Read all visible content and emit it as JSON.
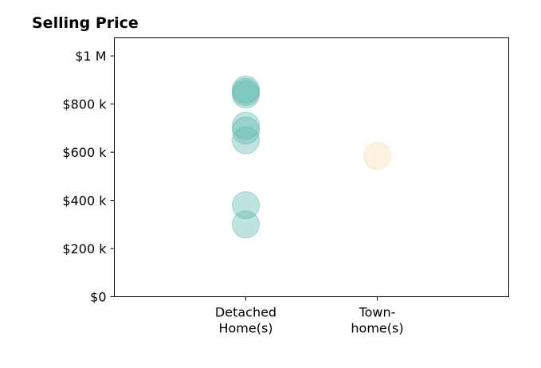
{
  "chart_data": {
    "type": "scatter",
    "title": "Selling Price",
    "xlabel": "",
    "ylabel": "",
    "categories": [
      [
        "Detached",
        "Home(s)"
      ],
      [
        "Town-",
        "home(s)"
      ]
    ],
    "y_ticks": [
      0,
      200000,
      400000,
      600000,
      800000,
      1000000
    ],
    "y_tick_labels": [
      "$0",
      "$200 k",
      "$400 k",
      "$600 k",
      "$800 k",
      "$1 M"
    ],
    "ylim": [
      0,
      1075000
    ],
    "xlim": [
      -1,
      2
    ],
    "grid": false,
    "legend": "none",
    "series": [
      {
        "category_index": 0,
        "color": "#5fb8ad",
        "values": [
          300000,
          380000,
          650000,
          690000,
          710000,
          840000,
          850000,
          860000
        ]
      },
      {
        "category_index": 1,
        "color": "#f5deb0",
        "values": [
          585000
        ]
      }
    ]
  }
}
